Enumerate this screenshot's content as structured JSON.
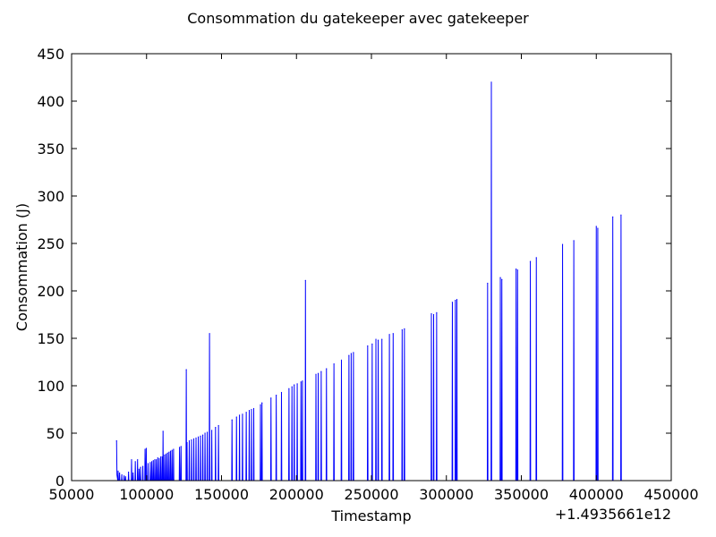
{
  "chart_data": {
    "type": "line",
    "title": "Consommation du gatekeeper avec gatekeeper",
    "xlabel": "Timestamp",
    "ylabel": "Consommation (J)",
    "x_offset_label": "+1.4935661e12",
    "xlim": [
      50000,
      450000
    ],
    "ylim": [
      0,
      450
    ],
    "x_ticks": [
      50000,
      100000,
      150000,
      200000,
      250000,
      300000,
      350000,
      400000,
      450000
    ],
    "x_tick_labels": [
      "50000",
      "100000",
      "150000",
      "200000",
      "250000",
      "300000",
      "350000",
      "400000",
      "450000"
    ],
    "y_ticks": [
      0,
      50,
      100,
      150,
      200,
      250,
      300,
      350,
      400,
      450
    ],
    "y_tick_labels": [
      "0",
      "50",
      "100",
      "150",
      "200",
      "250",
      "300",
      "350",
      "400",
      "450"
    ],
    "grid": false,
    "series_color": "#0000ff",
    "spikes": [
      [
        80000,
        42
      ],
      [
        81000,
        10
      ],
      [
        82000,
        8
      ],
      [
        83500,
        6
      ],
      [
        85000,
        5
      ],
      [
        86000,
        4
      ],
      [
        88000,
        9
      ],
      [
        90000,
        22
      ],
      [
        91000,
        8
      ],
      [
        92500,
        20
      ],
      [
        94000,
        22
      ],
      [
        95000,
        12
      ],
      [
        96000,
        14
      ],
      [
        97500,
        15
      ],
      [
        99000,
        33
      ],
      [
        99800,
        34
      ],
      [
        101000,
        18
      ],
      [
        102500,
        19
      ],
      [
        103500,
        20
      ],
      [
        104500,
        21
      ],
      [
        105500,
        22
      ],
      [
        106500,
        22
      ],
      [
        107500,
        24
      ],
      [
        108500,
        23
      ],
      [
        109500,
        25
      ],
      [
        110500,
        25
      ],
      [
        111000,
        52
      ],
      [
        112000,
        27
      ],
      [
        113000,
        28
      ],
      [
        114000,
        29
      ],
      [
        115000,
        30
      ],
      [
        116000,
        31
      ],
      [
        117000,
        32
      ],
      [
        118000,
        33
      ],
      [
        122000,
        35
      ],
      [
        123000,
        36
      ],
      [
        126500,
        117
      ],
      [
        127000,
        40
      ],
      [
        128500,
        42
      ],
      [
        130000,
        43
      ],
      [
        131500,
        44
      ],
      [
        133000,
        45
      ],
      [
        134500,
        46
      ],
      [
        136000,
        47
      ],
      [
        137500,
        48
      ],
      [
        139000,
        50
      ],
      [
        140500,
        51
      ],
      [
        142000,
        155
      ],
      [
        143500,
        53
      ],
      [
        146000,
        56
      ],
      [
        148000,
        58
      ],
      [
        157000,
        64
      ],
      [
        160000,
        67
      ],
      [
        162000,
        69
      ],
      [
        164000,
        70
      ],
      [
        166500,
        72
      ],
      [
        168500,
        74
      ],
      [
        170000,
        75
      ],
      [
        171500,
        76
      ],
      [
        176000,
        80
      ],
      [
        177000,
        82
      ],
      [
        183000,
        87
      ],
      [
        186500,
        90
      ],
      [
        190000,
        93
      ],
      [
        195000,
        97
      ],
      [
        197000,
        99
      ],
      [
        198500,
        101
      ],
      [
        200500,
        102
      ],
      [
        203000,
        104
      ],
      [
        204000,
        105
      ],
      [
        206000,
        211
      ],
      [
        213000,
        112
      ],
      [
        214500,
        113
      ],
      [
        216500,
        115
      ],
      [
        220000,
        118
      ],
      [
        225000,
        123
      ],
      [
        230000,
        127
      ],
      [
        235000,
        132
      ],
      [
        236500,
        134
      ],
      [
        238000,
        135
      ],
      [
        247500,
        142
      ],
      [
        250500,
        144
      ],
      [
        253000,
        149
      ],
      [
        254500,
        148
      ],
      [
        257000,
        149
      ],
      [
        262000,
        154
      ],
      [
        264500,
        155
      ],
      [
        270500,
        159
      ],
      [
        272000,
        160
      ],
      [
        290000,
        176
      ],
      [
        291500,
        175
      ],
      [
        293500,
        177
      ],
      [
        304000,
        188
      ],
      [
        306000,
        190
      ],
      [
        307000,
        191
      ],
      [
        327500,
        208
      ],
      [
        330000,
        420
      ],
      [
        336000,
        214
      ],
      [
        337000,
        212
      ],
      [
        346500,
        223
      ],
      [
        347500,
        222
      ],
      [
        356000,
        231
      ],
      [
        360000,
        235
      ],
      [
        377500,
        249
      ],
      [
        385000,
        253
      ],
      [
        400000,
        268
      ],
      [
        401000,
        266
      ],
      [
        411000,
        278
      ],
      [
        416500,
        280
      ]
    ]
  }
}
